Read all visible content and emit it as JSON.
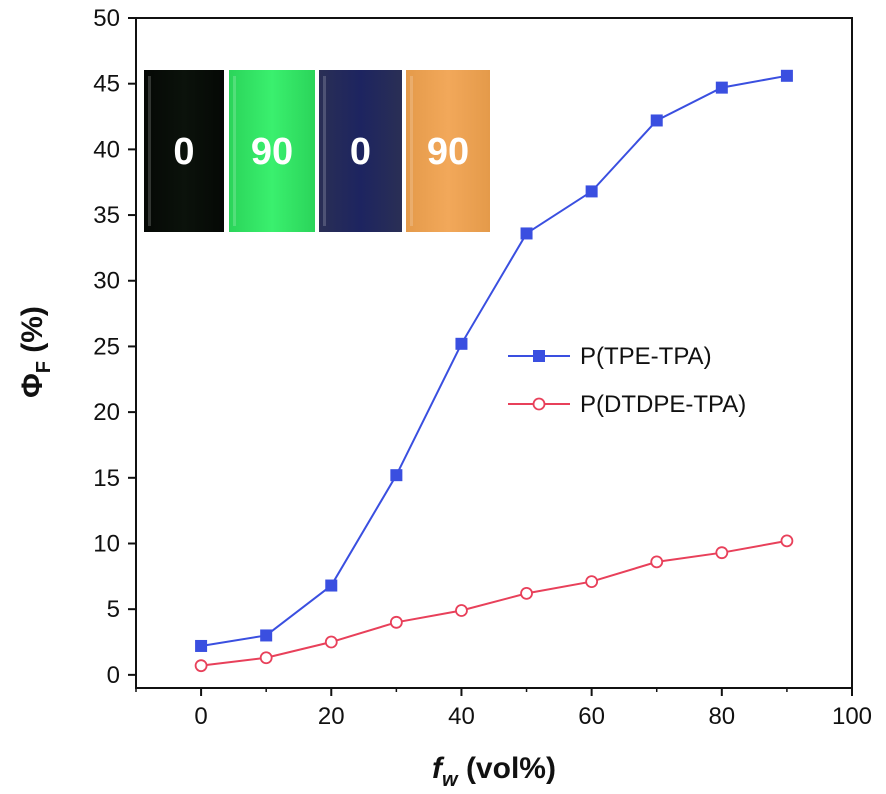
{
  "chart_data": {
    "type": "line",
    "xlabel": "f",
    "xlabel_sub": "w",
    "xlabel_suffix": "(vol%)",
    "ylabel": "Φ",
    "ylabel_sub": "F",
    "ylabel_suffix": "(%)",
    "xlim": [
      -10,
      100
    ],
    "ylim": [
      -1,
      50
    ],
    "x_ticks": [
      0,
      20,
      40,
      60,
      80,
      100
    ],
    "y_ticks": [
      0,
      5,
      10,
      15,
      20,
      25,
      30,
      35,
      40,
      45,
      50
    ],
    "legend_position": "middle-right",
    "x": [
      0,
      10,
      20,
      30,
      40,
      50,
      60,
      70,
      80,
      90
    ],
    "series": [
      {
        "name": "P(TPE-TPA)",
        "color": "#3a4fe0",
        "marker": "filled-square",
        "values": [
          2.2,
          3.0,
          6.8,
          15.2,
          25.2,
          33.6,
          36.8,
          42.2,
          44.7,
          45.6
        ]
      },
      {
        "name": "P(DTDPE-TPA)",
        "color": "#e8405a",
        "marker": "open-circle",
        "values": [
          0.7,
          1.3,
          2.5,
          4.0,
          4.9,
          6.2,
          7.1,
          8.6,
          9.3,
          10.2
        ]
      }
    ],
    "inset": {
      "panels": [
        {
          "label": "0",
          "color_top": "#050805",
          "color_bottom": "#0b120b"
        },
        {
          "label": "90",
          "color_top": "#2bd45a",
          "color_bottom": "#3af06e"
        },
        {
          "label": "0",
          "color_top": "#2a2f55",
          "color_bottom": "#1d2460"
        },
        {
          "label": "90",
          "color_top": "#e49a4a",
          "color_bottom": "#f2a85a"
        }
      ]
    }
  }
}
